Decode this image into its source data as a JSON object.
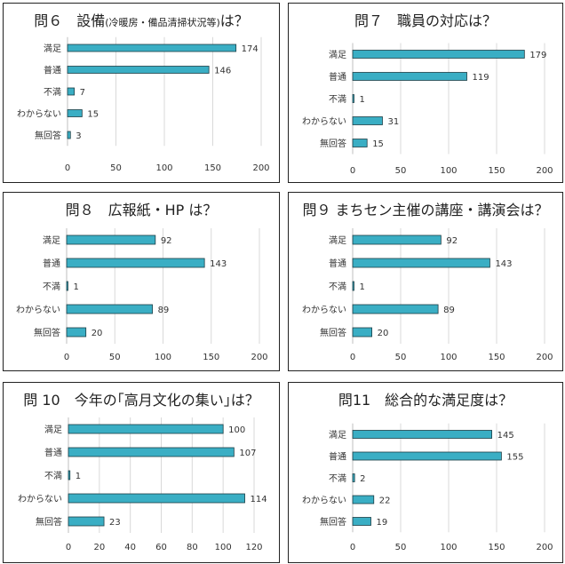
{
  "colors": {
    "bar": "#3aaec4",
    "bar_stroke": "#1d3e45",
    "grid": "#d9d9d9",
    "border": "#222222"
  },
  "chart_data": [
    {
      "type": "bar",
      "title_parts": [
        "問６　設備",
        "(冷暖房・備品清掃状況等)",
        "は？"
      ],
      "categories": [
        "満足",
        "普通",
        "不満",
        "わからない",
        "無回答"
      ],
      "values": [
        174,
        146,
        7,
        15,
        3
      ],
      "xlim": [
        0,
        200
      ],
      "xticks": [
        "0",
        "50",
        "100",
        "150",
        "200"
      ]
    },
    {
      "type": "bar",
      "title": "問７　職員の対応は？",
      "categories": [
        "満足",
        "普通",
        "不満",
        "わからない",
        "無回答"
      ],
      "values": [
        179,
        119,
        1,
        31,
        15
      ],
      "xlim": [
        0,
        200
      ],
      "xticks": [
        "0",
        "50",
        "100",
        "150",
        "200"
      ]
    },
    {
      "type": "bar",
      "title": "問８　広報紙・HP は？",
      "categories": [
        "満足",
        "普通",
        "不満",
        "わからない",
        "無回答"
      ],
      "values": [
        92,
        143,
        1,
        89,
        20
      ],
      "xlim": [
        0,
        200
      ],
      "xticks": [
        "0",
        "50",
        "100",
        "150",
        "200"
      ]
    },
    {
      "type": "bar",
      "title": "問９ まちセン主催の講座・講演会は？",
      "categories": [
        "満足",
        "普通",
        "不満",
        "わからない",
        "無回答"
      ],
      "values": [
        92,
        143,
        1,
        89,
        20
      ],
      "xlim": [
        0,
        200
      ],
      "xticks": [
        "0",
        "50",
        "100",
        "150",
        "200"
      ]
    },
    {
      "type": "bar",
      "title": "問 10　今年の｢高月文化の集い｣は？",
      "categories": [
        "満足",
        "普通",
        "不満",
        "わからない",
        "無回答"
      ],
      "values": [
        100,
        107,
        1,
        114,
        23
      ],
      "xlim": [
        0,
        120
      ],
      "xticks": [
        "0",
        "20",
        "40",
        "60",
        "80",
        "100",
        "120"
      ]
    },
    {
      "type": "bar",
      "title": "問11　総合的な満足度は？",
      "categories": [
        "満足",
        "普通",
        "不満",
        "わからない",
        "無回答"
      ],
      "values": [
        145,
        155,
        2,
        22,
        19
      ],
      "xlim": [
        0,
        200
      ],
      "xticks": [
        "0",
        "50",
        "100",
        "150",
        "200"
      ]
    }
  ]
}
